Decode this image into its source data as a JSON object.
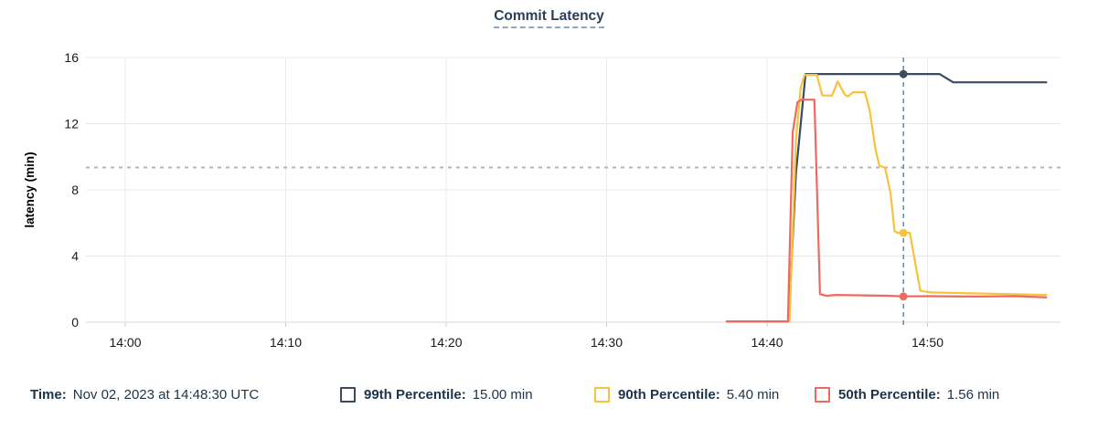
{
  "title": "Commit Latency",
  "chart_data": {
    "type": "line",
    "title": "Commit Latency",
    "xlabel": "",
    "ylabel": "latency (min)",
    "ylim": [
      0,
      16
    ],
    "yticks": [
      0,
      4,
      8,
      12,
      16
    ],
    "grid": true,
    "x_unit": "minutes after 14:00",
    "x_axis": {
      "tick_labels": [
        "14:00",
        "14:10",
        "14:20",
        "14:30",
        "14:40",
        "14:50"
      ],
      "tick_minutes": [
        0,
        10,
        20,
        30,
        40,
        50
      ],
      "window_minutes": [
        -2.45,
        58.3
      ]
    },
    "annotation_line": {
      "value": 9.35,
      "style": "dashed",
      "color": "#a9b9c2"
    },
    "cursor": {
      "time_label": "14:48:30",
      "minutes": 48.5,
      "color": "#5f7f9b",
      "style": "dashed"
    },
    "series": [
      {
        "name": "99th Percentile",
        "color": "#3b4a5e",
        "cursor_value": 15.0,
        "points": [
          [
            37.5,
            0.05
          ],
          [
            41.35,
            0.05
          ],
          [
            41.8,
            9.0
          ],
          [
            42.4,
            15.0
          ],
          [
            50.75,
            15.0
          ],
          [
            51.6,
            14.5
          ],
          [
            57.4,
            14.5
          ]
        ]
      },
      {
        "name": "90th Percentile",
        "color": "#f8c33c",
        "cursor_value": 5.4,
        "points": [
          [
            37.5,
            0.05
          ],
          [
            41.4,
            0.05
          ],
          [
            41.8,
            11.0
          ],
          [
            42.1,
            14.2
          ],
          [
            42.35,
            14.95
          ],
          [
            43.1,
            14.95
          ],
          [
            43.45,
            13.7
          ],
          [
            44.05,
            13.7
          ],
          [
            44.4,
            14.55
          ],
          [
            44.85,
            13.75
          ],
          [
            45.05,
            13.65
          ],
          [
            45.35,
            13.9
          ],
          [
            46.1,
            13.9
          ],
          [
            46.4,
            12.8
          ],
          [
            46.75,
            10.5
          ],
          [
            47.0,
            9.45
          ],
          [
            47.35,
            9.35
          ],
          [
            47.7,
            7.8
          ],
          [
            47.95,
            5.5
          ],
          [
            48.15,
            5.4
          ],
          [
            48.9,
            5.4
          ],
          [
            49.55,
            1.9
          ],
          [
            50.2,
            1.8
          ],
          [
            57.4,
            1.65
          ]
        ]
      },
      {
        "name": "50th Percentile",
        "color": "#ee6a61",
        "cursor_value": 1.56,
        "points": [
          [
            37.5,
            0.05
          ],
          [
            41.3,
            0.05
          ],
          [
            41.6,
            11.5
          ],
          [
            41.9,
            13.3
          ],
          [
            42.15,
            13.45
          ],
          [
            42.95,
            13.45
          ],
          [
            43.3,
            1.7
          ],
          [
            43.7,
            1.6
          ],
          [
            44.3,
            1.65
          ],
          [
            46.0,
            1.62
          ],
          [
            47.5,
            1.6
          ],
          [
            48.5,
            1.56
          ],
          [
            50.0,
            1.57
          ],
          [
            53.0,
            1.55
          ],
          [
            55.5,
            1.57
          ],
          [
            57.4,
            1.5
          ]
        ]
      }
    ]
  },
  "legend": {
    "time_label": "Time:",
    "time_value": "Nov 02, 2023 at 14:48:30 UTC",
    "items": [
      {
        "label": "99th Percentile:",
        "value": "15.00 min",
        "color": "#3b4a5e"
      },
      {
        "label": "90th Percentile:",
        "value": "5.40 min",
        "color": "#f8c33c"
      },
      {
        "label": "50th Percentile:",
        "value": "1.56 min",
        "color": "#ee6a61"
      }
    ]
  }
}
